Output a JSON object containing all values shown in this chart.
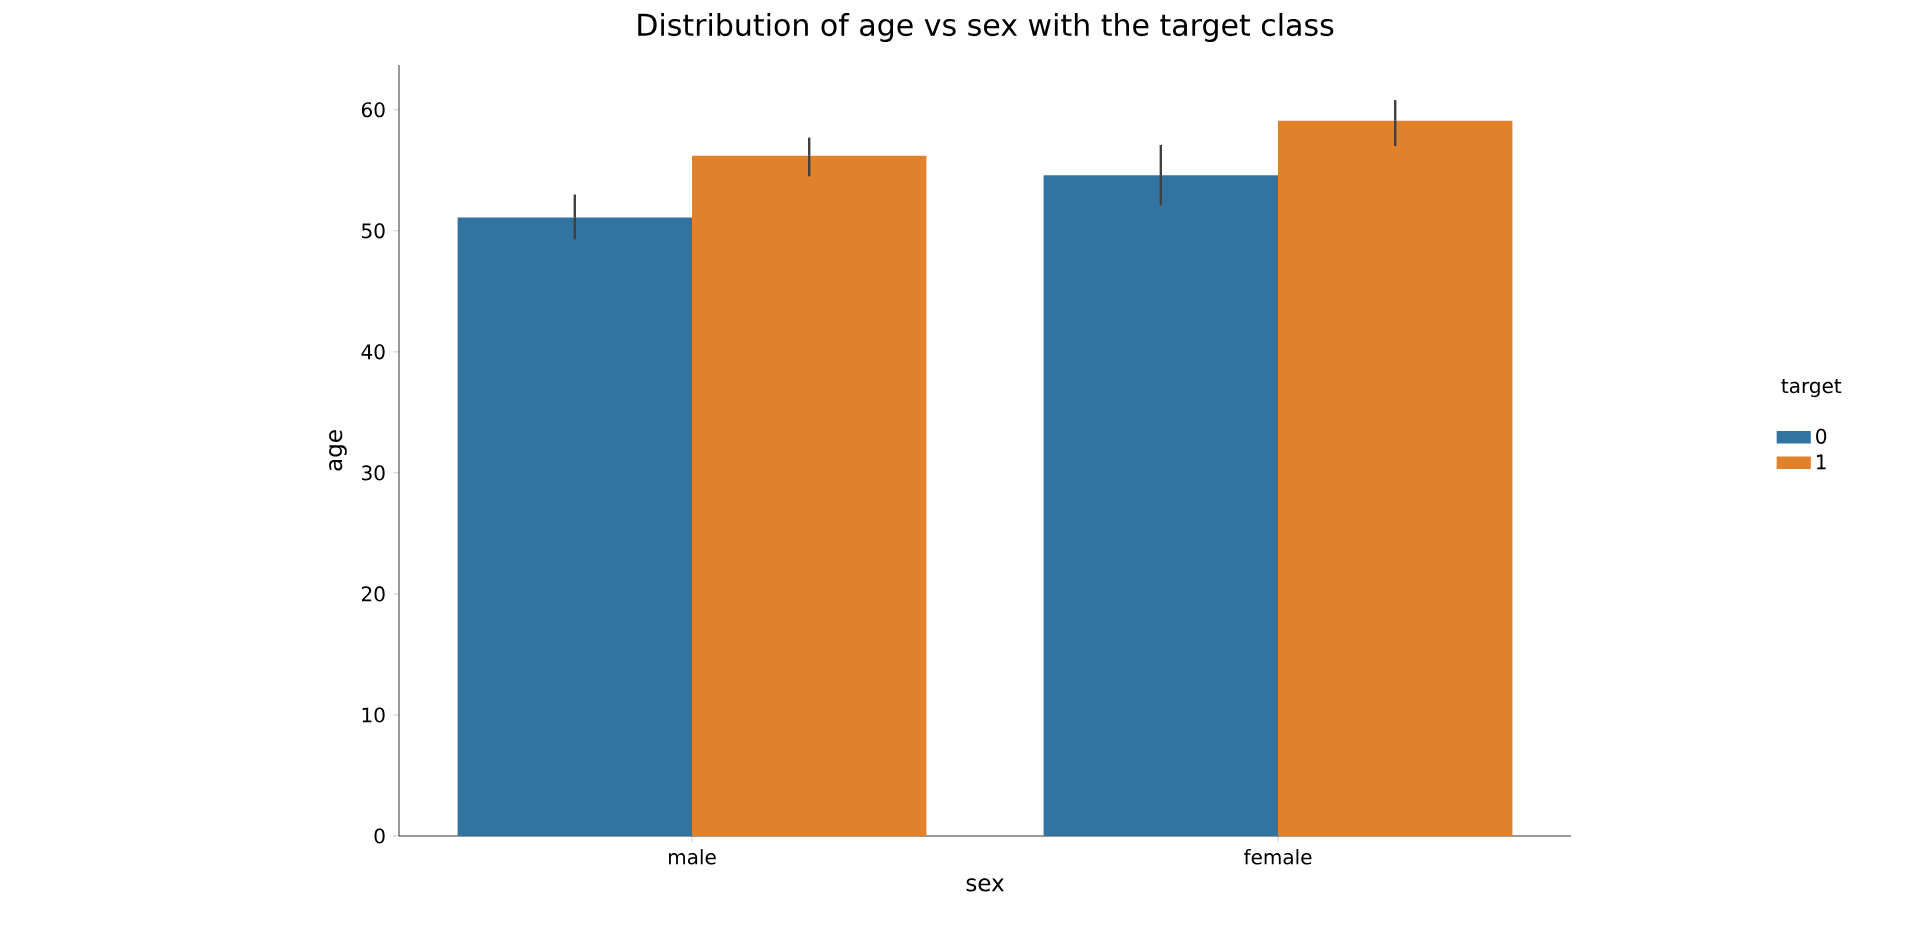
{
  "chart_data": {
    "type": "bar",
    "title": "Distribution of age vs sex with the target class",
    "xlabel": "sex",
    "ylabel": "age",
    "legend_title": "target",
    "categories": [
      "male",
      "female"
    ],
    "series": [
      {
        "name": "0",
        "color": "#3274a1",
        "values": [
          51.1,
          54.6
        ],
        "errors": [
          [
            49.3,
            53.0
          ],
          [
            52.1,
            57.1
          ]
        ]
      },
      {
        "name": "1",
        "color": "#e1812c",
        "values": [
          56.2,
          59.1
        ],
        "errors": [
          [
            54.5,
            57.7
          ],
          [
            57.0,
            60.8
          ]
        ]
      }
    ],
    "ylim": [
      0,
      63.7
    ],
    "yticks": [
      0,
      10,
      20,
      30,
      40,
      50,
      60
    ],
    "grid": false,
    "legend": "right"
  }
}
